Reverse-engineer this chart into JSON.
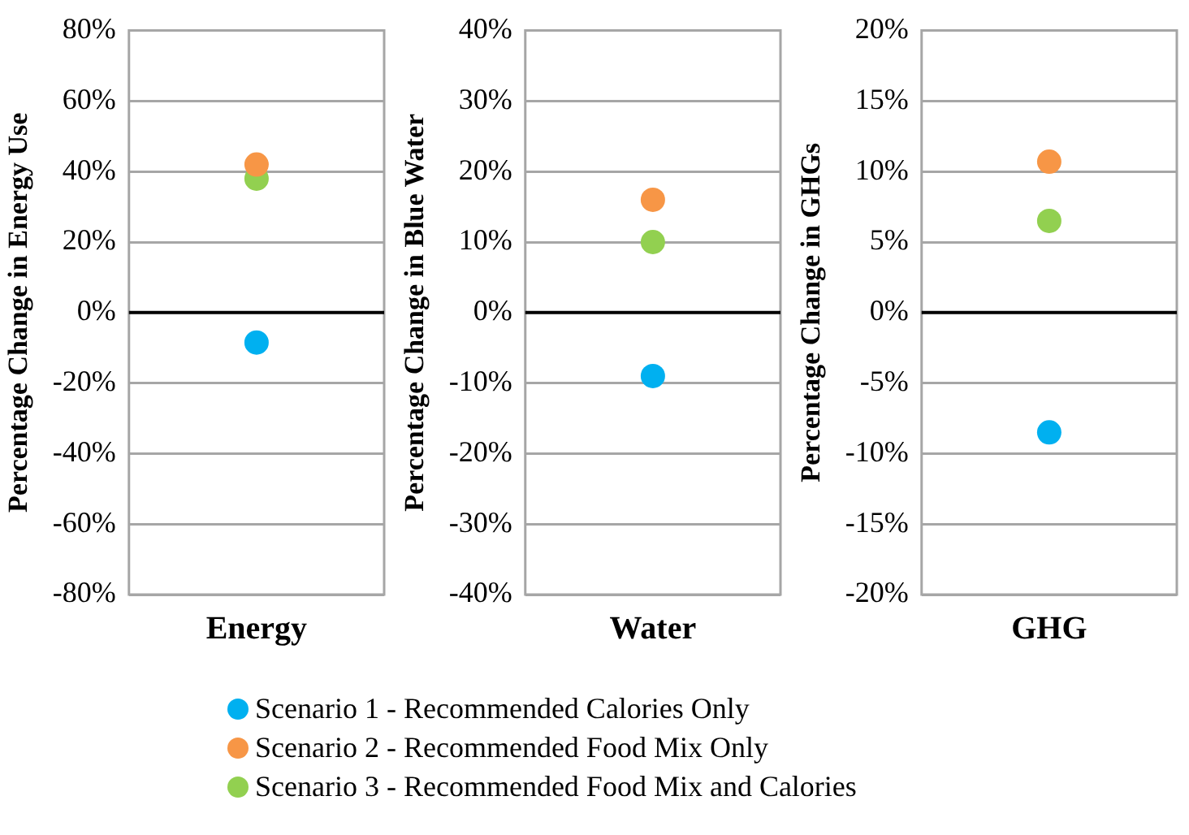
{
  "chart_data": [
    {
      "type": "scatter",
      "ylabel": "Percentage Change in Energy Use",
      "categories": [
        "Energy"
      ],
      "ylim": [
        -80,
        80
      ],
      "yticks": [
        {
          "value": -80,
          "label": "-80%"
        },
        {
          "value": -60,
          "label": "-60%"
        },
        {
          "value": -40,
          "label": "-40%"
        },
        {
          "value": -20,
          "label": "-20%"
        },
        {
          "value": 0,
          "label": "0%"
        },
        {
          "value": 20,
          "label": "20%"
        },
        {
          "value": 40,
          "label": "40%"
        },
        {
          "value": 60,
          "label": "60%"
        },
        {
          "value": 80,
          "label": "80%"
        }
      ],
      "grid": "y",
      "marker": "circle",
      "legend": "bottom",
      "ref_lines": [
        {
          "axis": "y",
          "value": 0,
          "color": "#000000"
        }
      ],
      "series": [
        {
          "name": "Scenario 1 - Recommended Calories Only",
          "color": "#00b0f0",
          "values": [
            -8.5
          ]
        },
        {
          "name": "Scenario 2 - Recommended Food Mix Only",
          "color": "#f79646",
          "values": [
            42
          ]
        },
        {
          "name": "Scenario 3 - Recommended Food Mix and Calories",
          "color": "#92d050",
          "values": [
            38
          ]
        }
      ]
    },
    {
      "type": "scatter",
      "ylabel": "Percentage Change in Blue Water",
      "categories": [
        "Water"
      ],
      "ylim": [
        -40,
        40
      ],
      "yticks": [
        {
          "value": -40,
          "label": "-40%"
        },
        {
          "value": -30,
          "label": "-30%"
        },
        {
          "value": -20,
          "label": "-20%"
        },
        {
          "value": -10,
          "label": "-10%"
        },
        {
          "value": 0,
          "label": "0%"
        },
        {
          "value": 10,
          "label": "10%"
        },
        {
          "value": 20,
          "label": "20%"
        },
        {
          "value": 30,
          "label": "30%"
        },
        {
          "value": 40,
          "label": "40%"
        }
      ],
      "grid": "y",
      "marker": "circle",
      "ref_lines": [
        {
          "axis": "y",
          "value": 0,
          "color": "#000000"
        }
      ],
      "series": [
        {
          "color": "#00b0f0",
          "values": [
            -9
          ]
        },
        {
          "color": "#f79646",
          "values": [
            16
          ]
        },
        {
          "color": "#92d050",
          "values": [
            10
          ]
        }
      ]
    },
    {
      "type": "scatter",
      "ylabel": "Percentage Change in GHGs",
      "categories": [
        "GHG"
      ],
      "ylim": [
        -20,
        20
      ],
      "yticks": [
        {
          "value": -20,
          "label": "-20%"
        },
        {
          "value": -15,
          "label": "-15%"
        },
        {
          "value": -10,
          "label": "-10%"
        },
        {
          "value": -5,
          "label": "-5%"
        },
        {
          "value": 0,
          "label": "0%"
        },
        {
          "value": 5,
          "label": "5%"
        },
        {
          "value": 10,
          "label": "10%"
        },
        {
          "value": 15,
          "label": "15%"
        },
        {
          "value": 20,
          "label": "20%"
        }
      ],
      "grid": "y",
      "marker": "circle",
      "ref_lines": [
        {
          "axis": "y",
          "value": 0,
          "color": "#000000"
        }
      ],
      "series": [
        {
          "color": "#00b0f0",
          "values": [
            -8.5
          ]
        },
        {
          "color": "#f79646",
          "values": [
            10.7
          ]
        },
        {
          "color": "#92d050",
          "values": [
            6.5
          ]
        }
      ]
    }
  ]
}
